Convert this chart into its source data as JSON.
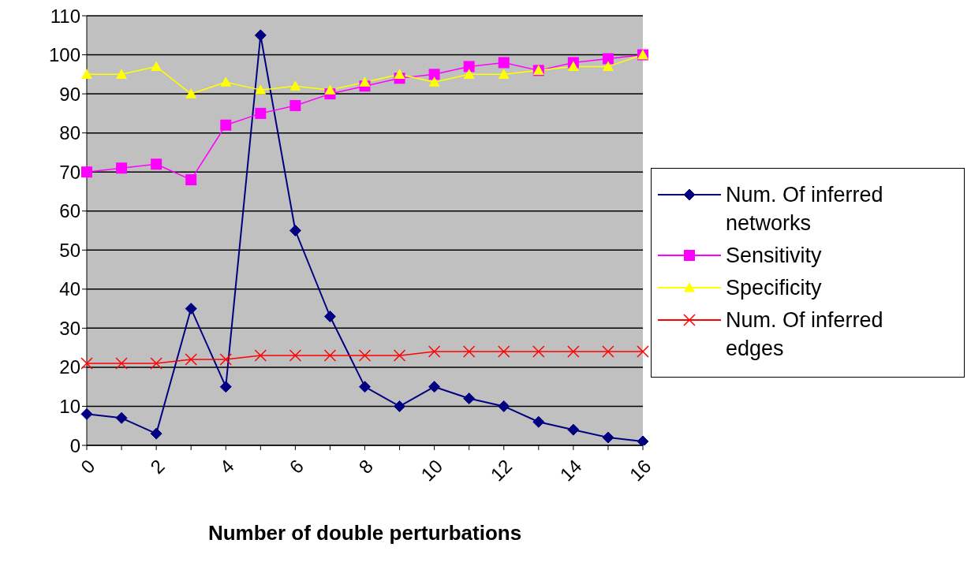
{
  "chart_data": {
    "type": "line",
    "xlabel": "Number of double perturbations",
    "categories": [
      "0",
      null,
      "2",
      null,
      "4",
      null,
      "6",
      null,
      "8",
      null,
      "10",
      null,
      "12",
      null,
      "14",
      null,
      "16"
    ],
    "series": [
      {
        "name": "Num. Of inferred networks",
        "color": "#000080",
        "marker": "diamond",
        "values": [
          8,
          7,
          3,
          35,
          15,
          105,
          55,
          33,
          15,
          10,
          15,
          12,
          10,
          6,
          4,
          2,
          1
        ]
      },
      {
        "name": "Sensitivity",
        "color": "#ff00ff",
        "marker": "square",
        "values": [
          70,
          71,
          72,
          68,
          82,
          85,
          87,
          90,
          92,
          94,
          95,
          97,
          98,
          96,
          98,
          99,
          100
        ]
      },
      {
        "name": "Specificity",
        "color": "#ffff00",
        "marker": "triangle",
        "values": [
          95,
          95,
          97,
          90,
          93,
          91,
          92,
          91,
          93,
          95,
          93,
          95,
          95,
          96,
          97,
          97,
          100
        ]
      },
      {
        "name": "Num. Of inferred edges",
        "color": "#ff0000",
        "marker": "cross",
        "values": [
          21,
          21,
          21,
          22,
          22,
          23,
          23,
          23,
          23,
          23,
          24,
          24,
          24,
          24,
          24,
          24,
          24
        ]
      }
    ],
    "ylim": [
      0,
      110
    ],
    "yticks": [
      0,
      10,
      20,
      30,
      40,
      50,
      60,
      70,
      80,
      90,
      100,
      110
    ],
    "grid": "y",
    "legend": "right"
  }
}
